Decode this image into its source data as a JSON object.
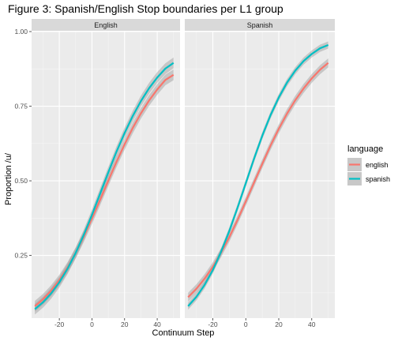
{
  "chart_data": {
    "type": "line",
    "title": "Figure 3: Spanish/English Stop boundaries per L1 group",
    "xlabel": "Continuum Step",
    "ylabel": "Proportion /u/",
    "xlim": [
      -37,
      54
    ],
    "ylim": [
      0.04,
      1.0
    ],
    "x_ticks": [
      -20,
      0,
      20,
      40
    ],
    "x_tick_labels": [
      "-20",
      "0",
      "20",
      "40"
    ],
    "y_ticks": [
      0.25,
      0.5,
      0.75,
      1.0
    ],
    "y_tick_labels": [
      "0.25",
      "0.50",
      "0.75",
      "1.00"
    ],
    "grid": true,
    "legend": {
      "title": "language",
      "position": "right",
      "entries": [
        {
          "label": "english",
          "color": "#F8766D"
        },
        {
          "label": "spanish",
          "color": "#00BFC4"
        }
      ]
    },
    "x": [
      -35,
      -30,
      -25,
      -20,
      -15,
      -10,
      -5,
      0,
      5,
      10,
      15,
      20,
      25,
      30,
      35,
      40,
      45,
      50
    ],
    "panels": [
      {
        "name": "English",
        "series": [
          {
            "name": "english",
            "color": "#F8766D",
            "values": [
              0.08,
              0.103,
              0.132,
              0.167,
              0.209,
              0.258,
              0.313,
              0.373,
              0.436,
              0.5,
              0.563,
              0.622,
              0.677,
              0.726,
              0.769,
              0.806,
              0.838,
              0.855
            ],
            "ci_halfwidth": 0.018
          },
          {
            "name": "spanish",
            "color": "#00BFC4",
            "values": [
              0.07,
              0.093,
              0.123,
              0.16,
              0.205,
              0.258,
              0.319,
              0.386,
              0.457,
              0.528,
              0.597,
              0.66,
              0.717,
              0.767,
              0.81,
              0.846,
              0.876,
              0.895
            ],
            "ci_halfwidth": 0.018
          }
        ]
      },
      {
        "name": "Spanish",
        "series": [
          {
            "name": "english",
            "color": "#F8766D",
            "values": [
              0.11,
              0.138,
              0.172,
              0.212,
              0.259,
              0.311,
              0.369,
              0.431,
              0.494,
              0.557,
              0.618,
              0.674,
              0.725,
              0.77,
              0.809,
              0.843,
              0.872,
              0.895
            ],
            "ci_halfwidth": 0.015
          },
          {
            "name": "spanish",
            "color": "#00BFC4",
            "values": [
              0.08,
              0.111,
              0.151,
              0.201,
              0.262,
              0.332,
              0.41,
              0.492,
              0.574,
              0.651,
              0.72,
              0.779,
              0.829,
              0.869,
              0.901,
              0.925,
              0.944,
              0.955
            ],
            "ci_halfwidth": 0.012
          }
        ]
      }
    ]
  }
}
